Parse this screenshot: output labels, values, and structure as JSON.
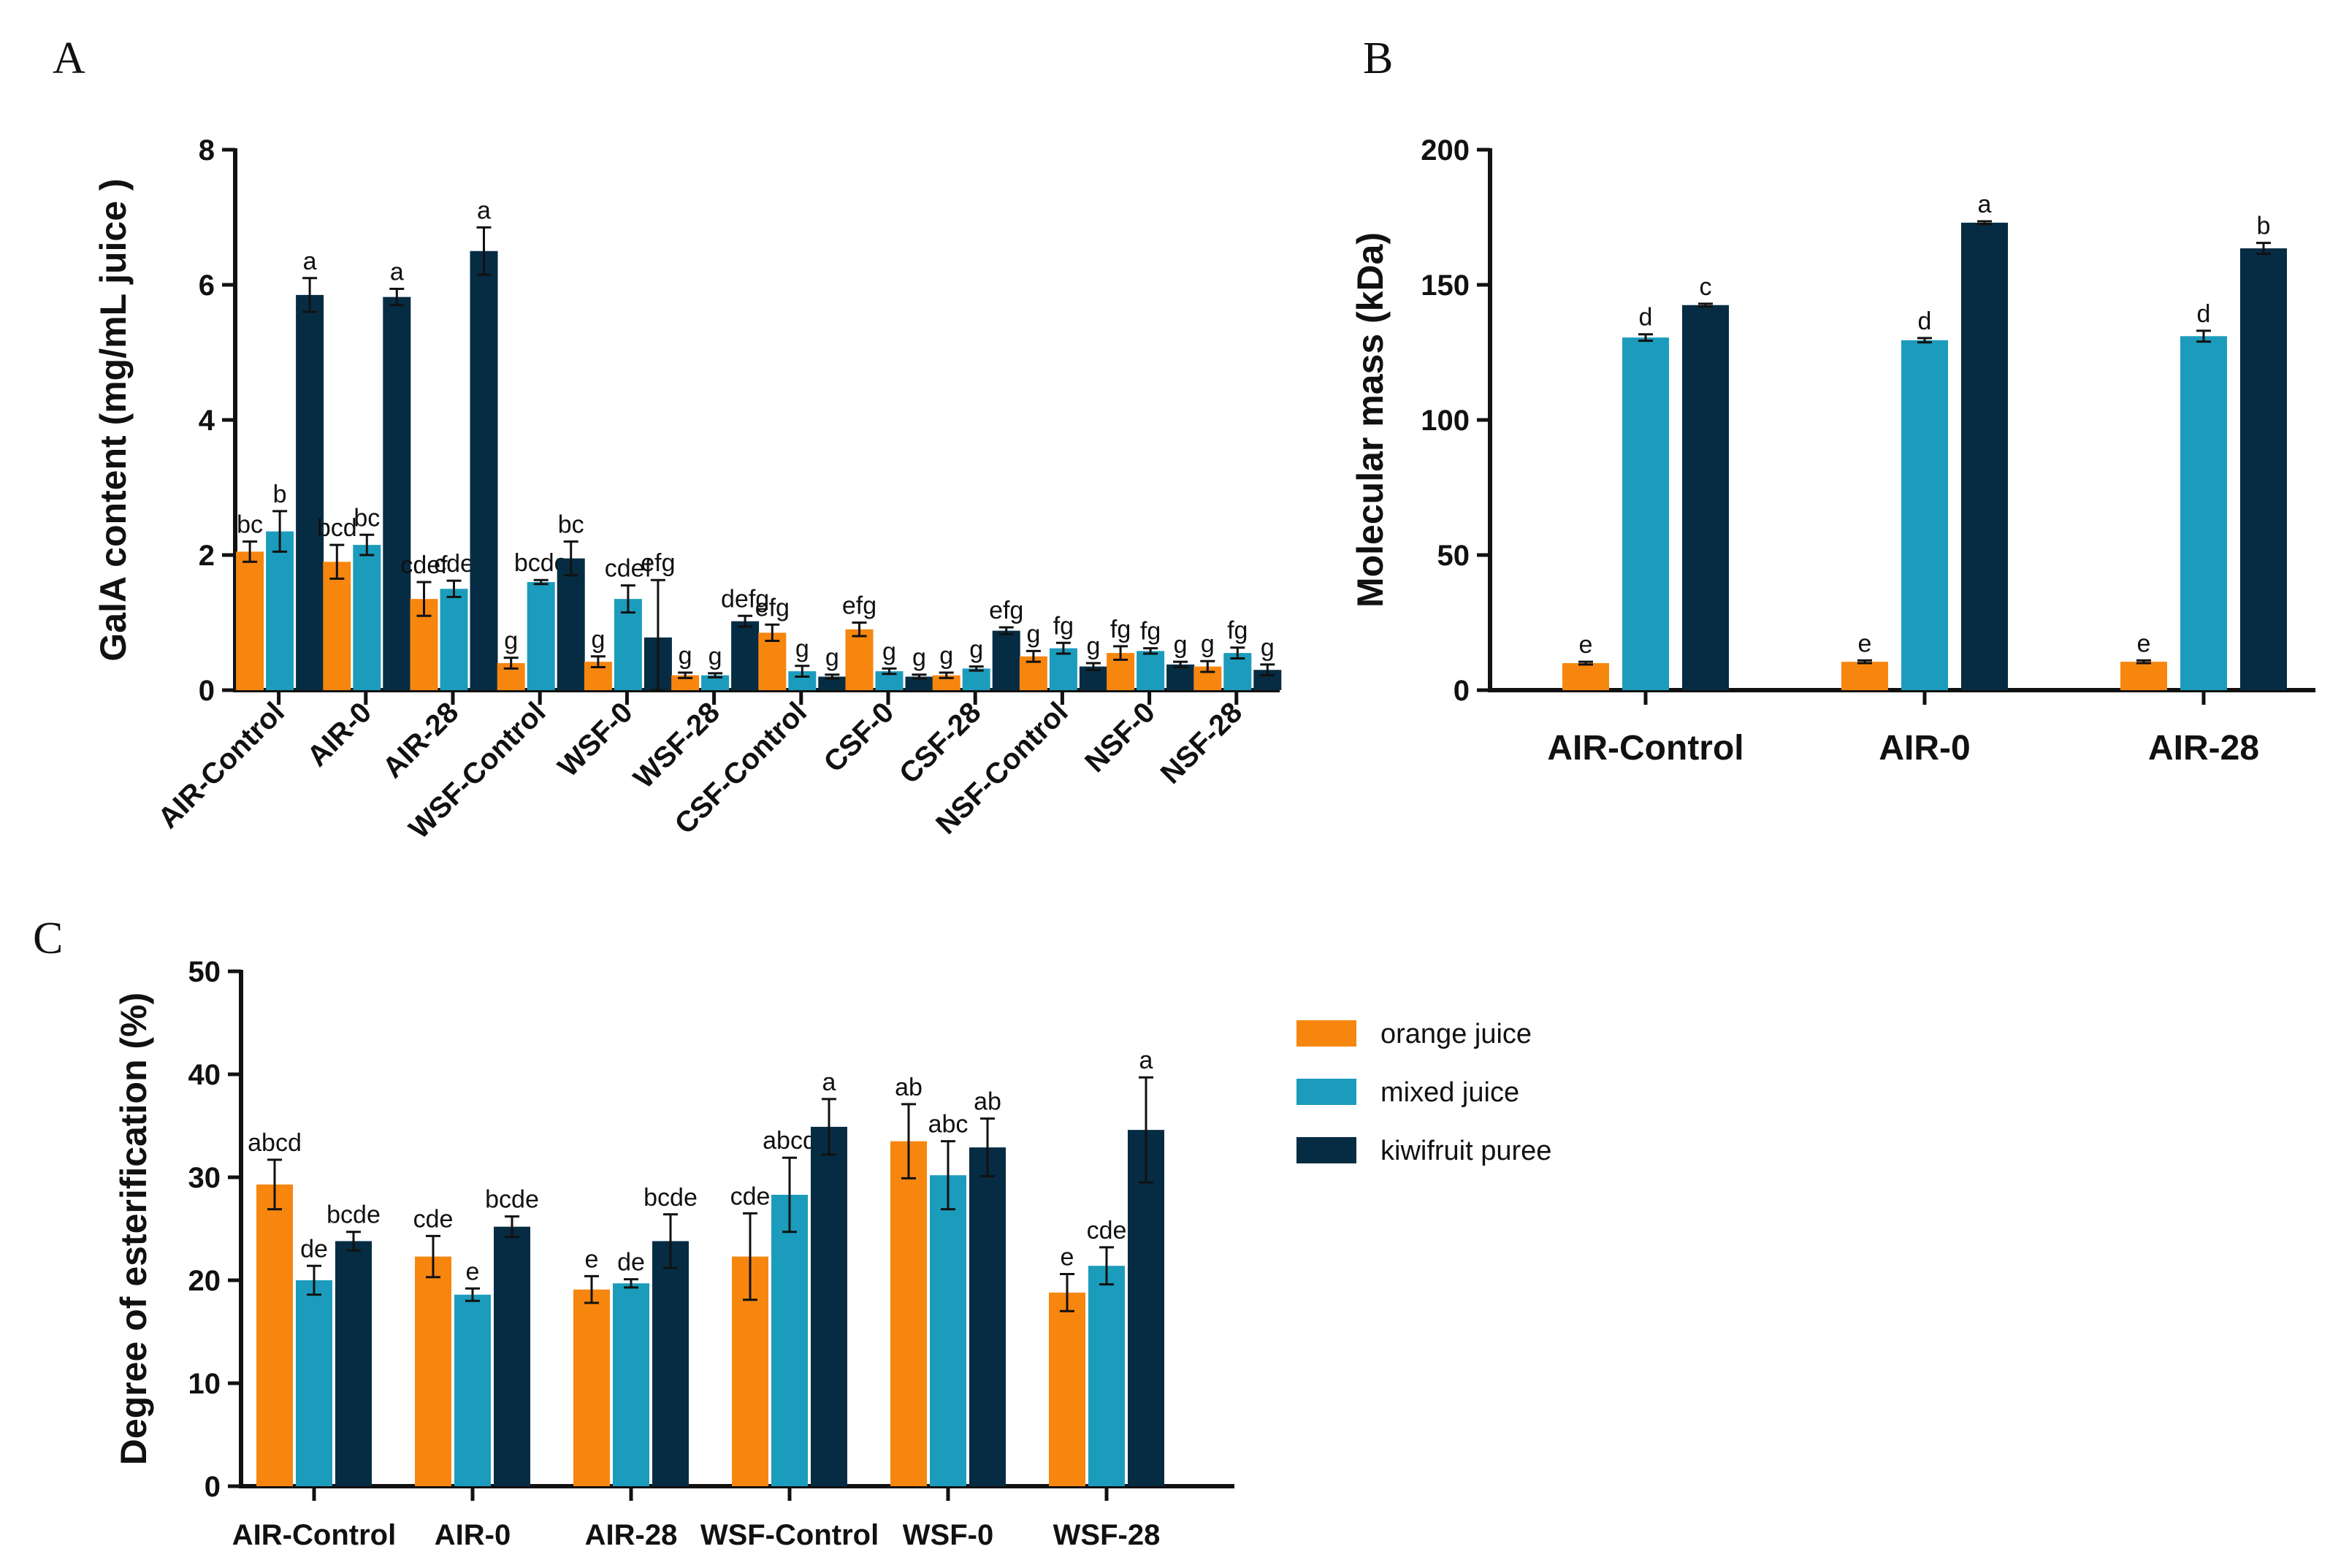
{
  "colors": {
    "orange": "#F7860F",
    "mixed": "#1C9CBC",
    "kiwi": "#062C43",
    "axis": "#111111"
  },
  "legend": [
    {
      "key": "orange",
      "label": "orange juice"
    },
    {
      "key": "mixed",
      "label": "mixed juice"
    },
    {
      "key": "kiwi",
      "label": "kiwifruit puree"
    }
  ],
  "chart_data": [
    {
      "id": "A",
      "panel_label": "A",
      "type": "bar",
      "ylabel": "GalA content (mg/mL juice )",
      "xlabel": "",
      "ylim": [
        0,
        8
      ],
      "yticks": [
        0,
        2,
        4,
        6,
        8
      ],
      "categories": [
        "AIR-Control",
        "AIR-0",
        "AIR-28",
        "WSF-Control",
        "WSF-0",
        "WSF-28",
        "CSF-Control",
        "CSF-0",
        "CSF-28",
        "NSF-Control",
        "NSF-0",
        "NSF-28"
      ],
      "series": [
        {
          "name": "orange juice",
          "values": [
            2.05,
            1.9,
            1.35,
            0.4,
            0.42,
            0.22,
            0.85,
            0.9,
            0.22,
            0.5,
            0.55,
            0.35
          ],
          "errors": [
            0.15,
            0.25,
            0.25,
            0.08,
            0.08,
            0.04,
            0.12,
            0.1,
            0.04,
            0.08,
            0.1,
            0.08
          ],
          "labels": [
            "bc",
            "bcd",
            "cdef",
            "g",
            "g",
            "g",
            "efg",
            "efg",
            "g",
            "g",
            "fg",
            "g"
          ]
        },
        {
          "name": "mixed juice",
          "values": [
            2.35,
            2.15,
            1.5,
            1.6,
            1.35,
            0.22,
            0.28,
            0.28,
            0.32,
            0.62,
            0.58,
            0.55
          ],
          "errors": [
            0.3,
            0.15,
            0.12,
            0.03,
            0.2,
            0.03,
            0.08,
            0.04,
            0.03,
            0.08,
            0.04,
            0.08
          ],
          "labels": [
            "b",
            "bc",
            "cde",
            "bcde",
            "cdef",
            "g",
            "g",
            "g",
            "g",
            "fg",
            "fg",
            "fg"
          ]
        },
        {
          "name": "kiwifruit puree",
          "values": [
            5.85,
            5.82,
            6.5,
            1.95,
            0.78,
            1.02,
            0.2,
            0.2,
            0.88,
            0.35,
            0.38,
            0.3
          ],
          "errors": [
            0.25,
            0.12,
            0.35,
            0.25,
            0.85,
            0.08,
            0.03,
            0.03,
            0.05,
            0.05,
            0.04,
            0.08
          ],
          "labels": [
            "a",
            "a",
            "a",
            "bc",
            "efg",
            "defg",
            "g",
            "g",
            "efg",
            "g",
            "g",
            "g"
          ]
        }
      ]
    },
    {
      "id": "B",
      "panel_label": "B",
      "type": "bar",
      "ylabel": "Molecular mass (kDa)",
      "xlabel": "",
      "ylim": [
        0,
        200
      ],
      "yticks": [
        0,
        50,
        100,
        150,
        200
      ],
      "categories": [
        "AIR-Control",
        "AIR-0",
        "AIR-28"
      ],
      "series": [
        {
          "name": "orange juice",
          "values": [
            10,
            10.5,
            10.5
          ],
          "errors": [
            0.5,
            0.5,
            0.5
          ],
          "labels": [
            "e",
            "e",
            "e"
          ]
        },
        {
          "name": "mixed juice",
          "values": [
            130.5,
            129.5,
            131
          ],
          "errors": [
            1.2,
            0.8,
            2
          ],
          "labels": [
            "d",
            "d",
            "d"
          ]
        },
        {
          "name": "kiwifruit puree",
          "values": [
            142.5,
            173,
            163.5
          ],
          "errors": [
            0.5,
            0.5,
            2
          ],
          "labels": [
            "c",
            "a",
            "b"
          ]
        }
      ]
    },
    {
      "id": "C",
      "panel_label": "C",
      "type": "bar",
      "ylabel": "Degree of esterification (%)",
      "xlabel": "",
      "ylim": [
        0,
        50
      ],
      "yticks": [
        0,
        10,
        20,
        30,
        40,
        50
      ],
      "categories": [
        "AIR-Control",
        "AIR-0",
        "AIR-28",
        "WSF-Control",
        "WSF-0",
        "WSF-28"
      ],
      "series": [
        {
          "name": "orange juice",
          "values": [
            29.3,
            22.3,
            19.1,
            22.3,
            33.5,
            18.8
          ],
          "errors": [
            2.4,
            2.0,
            1.3,
            4.2,
            3.6,
            1.8
          ],
          "labels": [
            "abcd",
            "cde",
            "e",
            "cde",
            "ab",
            "e"
          ]
        },
        {
          "name": "mixed juice",
          "values": [
            20.0,
            18.6,
            19.7,
            28.3,
            30.2,
            21.4
          ],
          "errors": [
            1.4,
            0.6,
            0.4,
            3.6,
            3.3,
            1.8
          ],
          "labels": [
            "de",
            "e",
            "de",
            "abcd",
            "abc",
            "cde"
          ]
        },
        {
          "name": "kiwifruit puree",
          "values": [
            23.8,
            25.2,
            23.8,
            34.9,
            32.9,
            34.6
          ],
          "errors": [
            0.9,
            1.0,
            2.6,
            2.7,
            2.8,
            5.1
          ],
          "labels": [
            "bcde",
            "bcde",
            "bcde",
            "a",
            "ab",
            "a"
          ]
        }
      ]
    }
  ]
}
